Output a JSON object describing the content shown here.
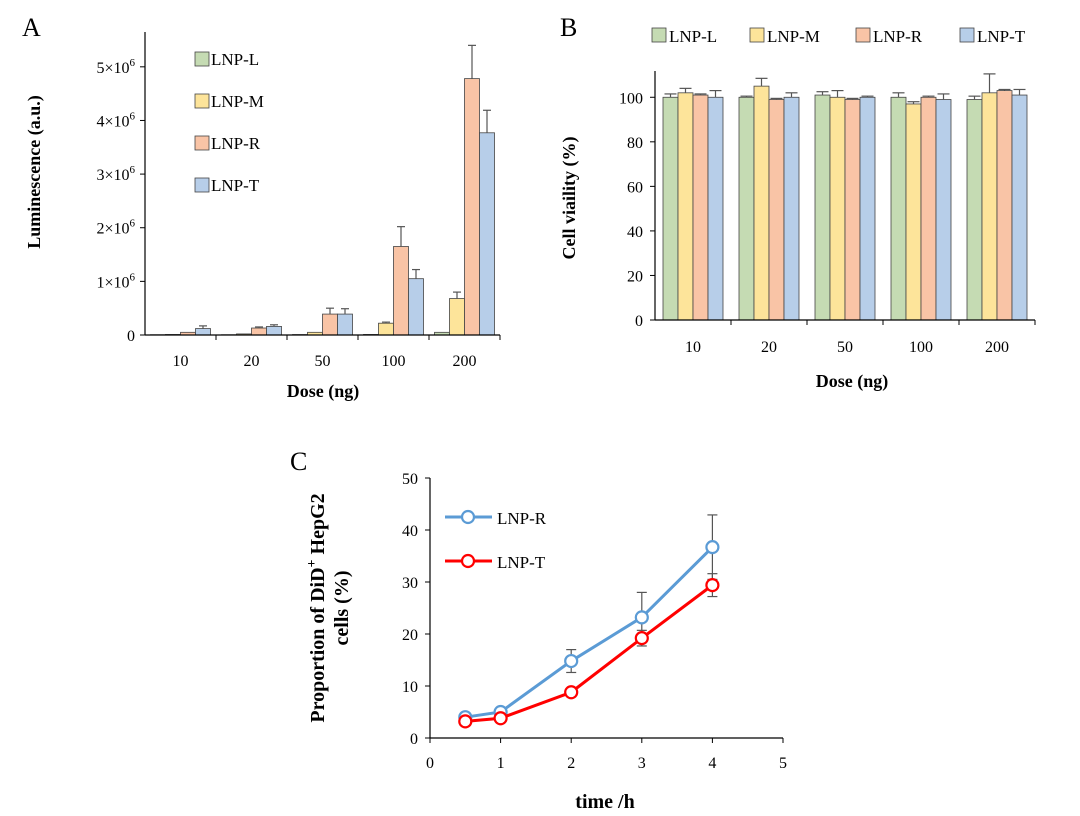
{
  "chart_data": [
    {
      "panel": "A",
      "type": "bar",
      "xlabel": "Dose (ng)",
      "ylabel": "Luminescence (a.u.)",
      "categories": [
        "10",
        "20",
        "50",
        "100",
        "200"
      ],
      "ylim": [
        0,
        5500000
      ],
      "yticks": [
        {
          "value": 0,
          "label": "0"
        },
        {
          "value": 1000000,
          "label": "1×10",
          "exp": "6"
        },
        {
          "value": 2000000,
          "label": "2×10",
          "exp": "6"
        },
        {
          "value": 3000000,
          "label": "3×10",
          "exp": "6"
        },
        {
          "value": 4000000,
          "label": "4×10",
          "exp": "6"
        },
        {
          "value": 5000000,
          "label": "5×10",
          "exp": "6"
        }
      ],
      "series": [
        {
          "name": "LNP-L",
          "color": "#c5dbb3",
          "values": [
            5000,
            5000,
            8000,
            10000,
            50000
          ],
          "errors": [
            0,
            0,
            0,
            0,
            0
          ]
        },
        {
          "name": "LNP-M",
          "color": "#fde49a",
          "values": [
            10000,
            20000,
            50000,
            220000,
            680000
          ],
          "errors": [
            0,
            0,
            0,
            20000,
            120000
          ]
        },
        {
          "name": "LNP-R",
          "color": "#f9c4a6",
          "values": [
            50000,
            130000,
            390000,
            1650000,
            4780000
          ],
          "errors": [
            0,
            20000,
            110000,
            370000,
            620000
          ]
        },
        {
          "name": "LNP-T",
          "color": "#b7cee9",
          "values": [
            120000,
            160000,
            390000,
            1050000,
            3770000
          ],
          "errors": [
            50000,
            30000,
            100000,
            170000,
            420000
          ]
        }
      ],
      "legend": "top-left"
    },
    {
      "panel": "B",
      "type": "bar",
      "xlabel": "Dose (ng)",
      "ylabel": "Cell viaility (%)",
      "categories": [
        "10",
        "20",
        "50",
        "100",
        "200"
      ],
      "ylim": [
        0,
        110
      ],
      "yticks": [
        {
          "value": 0,
          "label": "0"
        },
        {
          "value": 20,
          "label": "20"
        },
        {
          "value": 40,
          "label": "40"
        },
        {
          "value": 60,
          "label": "60"
        },
        {
          "value": 80,
          "label": "80"
        },
        {
          "value": 100,
          "label": "100"
        }
      ],
      "series": [
        {
          "name": "LNP-L",
          "color": "#c5dbb3",
          "values": [
            100,
            100,
            101,
            100,
            99
          ],
          "errors": [
            1.5,
            0.5,
            1.5,
            2,
            1.5
          ]
        },
        {
          "name": "LNP-M",
          "color": "#fde49a",
          "values": [
            102,
            105,
            100,
            97,
            102
          ],
          "errors": [
            2,
            3.5,
            3,
            1,
            8.5
          ]
        },
        {
          "name": "LNP-R",
          "color": "#f9c4a6",
          "values": [
            101,
            99,
            99,
            100,
            103
          ],
          "errors": [
            0.5,
            0.5,
            0.5,
            0.5,
            0.5
          ]
        },
        {
          "name": "LNP-T",
          "color": "#b7cee9",
          "values": [
            100,
            100,
            100,
            99,
            101
          ],
          "errors": [
            3,
            2,
            0.5,
            2.5,
            2.5
          ]
        }
      ],
      "legend": "top"
    },
    {
      "panel": "C",
      "type": "line",
      "xlabel": "time /h",
      "ylabel_line1": "Proportion of DiD",
      "ylabel_sup": "+",
      "ylabel_line1_end": " HepG2",
      "ylabel_line2": "cells (%)",
      "xlim": [
        0,
        5
      ],
      "ylim": [
        0,
        50
      ],
      "xticks": [
        "0",
        "1",
        "2",
        "3",
        "4",
        "5"
      ],
      "yticks": [
        "0",
        "10",
        "20",
        "30",
        "40",
        "50"
      ],
      "series": [
        {
          "name": "LNP-R",
          "color": "#5b9bd5",
          "x": [
            0.5,
            1,
            2,
            3,
            4
          ],
          "y": [
            4,
            5,
            14.8,
            23.2,
            36.7
          ],
          "errors": [
            0.8,
            0.6,
            2.2,
            4.8,
            6.2
          ]
        },
        {
          "name": "LNP-T",
          "color": "#ff0000",
          "x": [
            0.5,
            1,
            2,
            3,
            4
          ],
          "y": [
            3.2,
            3.8,
            8.8,
            19.2,
            29.4
          ],
          "errors": [
            0.8,
            0.5,
            0.8,
            1.5,
            2.2
          ]
        }
      ],
      "legend": "top-left"
    }
  ]
}
